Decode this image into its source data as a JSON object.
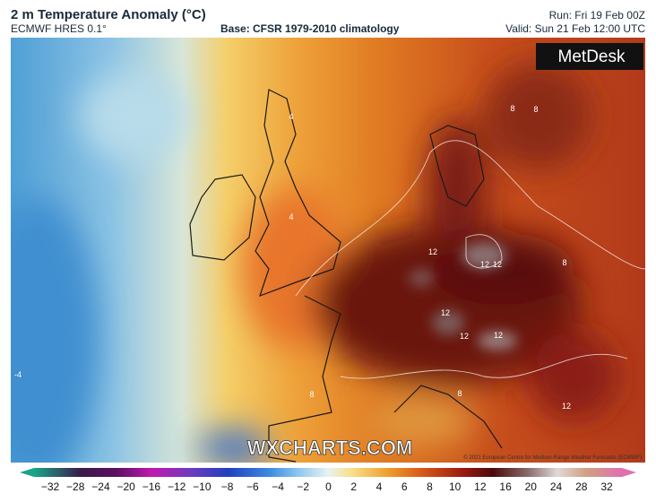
{
  "header": {
    "title": "2 m Temperature Anomaly (°C)",
    "model": "ECMWF HRES 0.1°",
    "base": "Base: CFSR 1979-2010 climatology",
    "run": "Run: Fri 19 Feb 00Z",
    "valid": "Valid: Sun 21 Feb 12:00 UTC"
  },
  "logo": "MetDesk",
  "watermark": "WXCHARTS.COM",
  "copyright": "© 2021 European Centre for Medium-Range Weather Forecasts (ECMWF)",
  "contour_labels": [
    "4",
    "4",
    "8",
    "8",
    "8",
    "12",
    "12",
    "12",
    "12",
    "12",
    "12",
    "12",
    "8",
    "8",
    "-4"
  ],
  "colorbar": {
    "labels": [
      "−32",
      "−28",
      "−24",
      "−20",
      "−16",
      "−12",
      "−10",
      "−8",
      "−6",
      "−4",
      "−2",
      "0",
      "2",
      "4",
      "6",
      "8",
      "10",
      "12",
      "16",
      "20",
      "24",
      "28",
      "32"
    ]
  }
}
